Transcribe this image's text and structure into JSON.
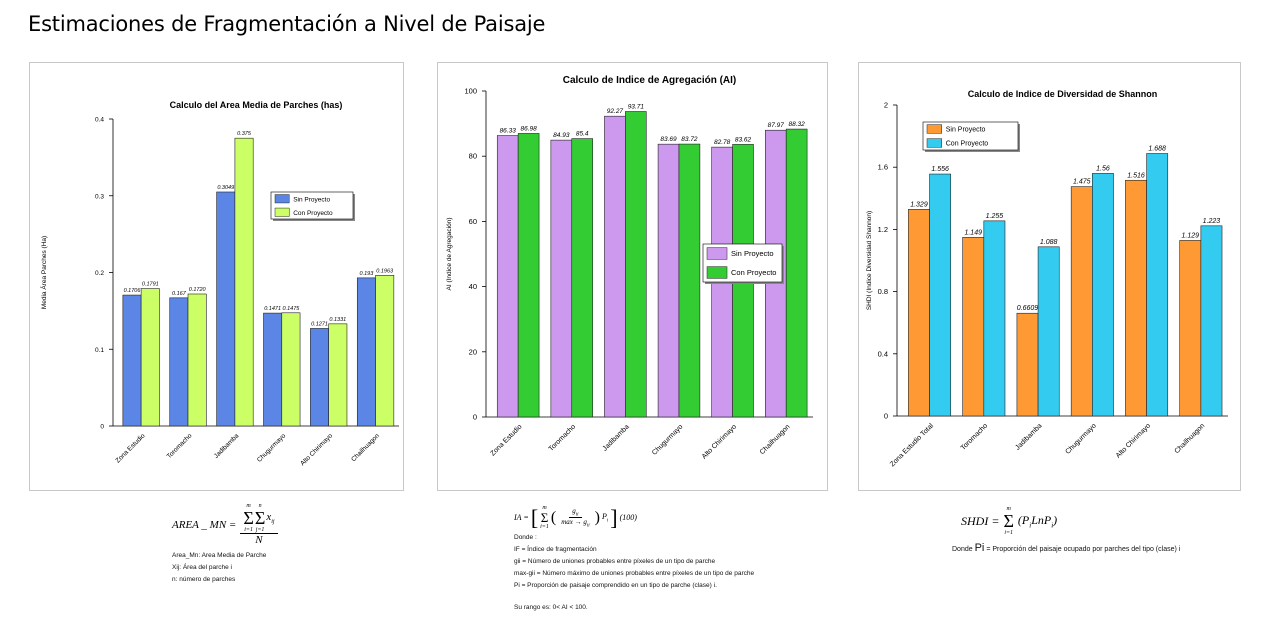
{
  "page": {
    "title": "Estimaciones de Fragmentación a Nivel de Paisaje"
  },
  "chart_data": [
    {
      "type": "bar",
      "title": "Calculo del Area Media de Parches (has)",
      "xlabel": "",
      "ylabel": "Media Área Parches (Ha)",
      "ylim": [
        0,
        0.4
      ],
      "yticks": [
        0,
        0.1,
        0.2,
        0.3,
        0.4
      ],
      "ytick_labels": [
        "0",
        "0.1",
        "0.2",
        "0.3",
        "0.4"
      ],
      "categories": [
        "Zona Estudio",
        "Toromacho",
        "Jadibamba",
        "Chugurmayo",
        "Alto Chirimayo",
        "Chailhuagon"
      ],
      "legend_position": "center-right",
      "series": [
        {
          "name": "Sin Proyecto",
          "color": "#5b86e5",
          "values": [
            0.1706,
            0.167,
            0.3049,
            0.1471,
            0.1271,
            0.193
          ],
          "labels": [
            "0.1706",
            "0.167",
            "0.3049",
            "0.1471",
            "0.1271",
            "0.193"
          ]
        },
        {
          "name": "Con Proyecto",
          "color": "#ccff66",
          "values": [
            0.1791,
            0.172,
            0.375,
            0.1475,
            0.1331,
            0.1963
          ],
          "labels": [
            "0.1791",
            "0.1720",
            "0.375",
            "0.1475",
            "0.1331",
            "0.1963"
          ]
        }
      ]
    },
    {
      "type": "bar",
      "title": "Calculo de Indice de Agregación (AI)",
      "xlabel": "",
      "ylabel": "AI (Indice de Agregación)",
      "ylim": [
        0,
        100
      ],
      "yticks": [
        0,
        20,
        40,
        60,
        80,
        100
      ],
      "ytick_labels": [
        "0",
        "20",
        "40",
        "60",
        "80",
        "100"
      ],
      "categories": [
        "Zona Estudio",
        "Toromacho",
        "Jadibamba",
        "Chugurmayo",
        "Alto Chirimayo",
        "Chailhuagon"
      ],
      "legend_position": "center-right",
      "series": [
        {
          "name": "Sin Proyecto",
          "color": "#cc99ee",
          "values": [
            86.33,
            84.93,
            92.27,
            83.69,
            82.78,
            87.97
          ],
          "labels": [
            "86.33",
            "84.93",
            "92.27",
            "83.69",
            "82.78",
            "87.97"
          ]
        },
        {
          "name": "Con Proyecto",
          "color": "#33cc33",
          "values": [
            86.98,
            85.4,
            93.71,
            83.72,
            83.62,
            88.32
          ],
          "labels": [
            "86.98",
            "85.4",
            "93.71",
            "83.72",
            "83.62",
            "88.32"
          ]
        }
      ]
    },
    {
      "type": "bar",
      "title": "Calculo de Indice de Diversidad de Shannon",
      "xlabel": "",
      "ylabel": "SHDI (Indice Diversidad Shannon)",
      "ylim": [
        0,
        2
      ],
      "yticks": [
        0,
        0.4,
        0.8,
        1.2,
        1.6,
        2
      ],
      "ytick_labels": [
        "0",
        "0.4",
        "0.8",
        "1.2",
        "1.6",
        "2"
      ],
      "categories": [
        "Zona Estudio Total",
        "Toromacho",
        "Jadibamba",
        "Chugurmayo",
        "Alto Chirimayo",
        "Chailhuagon"
      ],
      "legend_position": "top-left",
      "series": [
        {
          "name": "Sin Proyecto",
          "color": "#ff9933",
          "values": [
            1.329,
            1.149,
            0.6609,
            1.475,
            1.516,
            1.129
          ],
          "labels": [
            "1.329",
            "1.149",
            "0.6609",
            "1.475",
            "1.516",
            "1.129"
          ]
        },
        {
          "name": "Con Proyecto",
          "color": "#33ccf0",
          "values": [
            1.556,
            1.255,
            1.088,
            1.56,
            1.688,
            1.223
          ],
          "labels": [
            "1.556",
            "1.255",
            "1.088",
            "1.56",
            "1.688",
            "1.223"
          ]
        }
      ]
    }
  ],
  "formulas": {
    "area": {
      "lhs": "AREA _ MN =",
      "sum_outer_top": "m",
      "sum_outer_bottom": "i=1",
      "sum_inner_top": "n",
      "sum_inner_bottom": "j=1",
      "numerator_term": "x",
      "numerator_sub": "ij",
      "denominator": "N",
      "notes": [
        "Area_Mn: Area Media de Parche",
        "Xij: Área del parche i",
        "n: número de parches"
      ]
    },
    "ai": {
      "lhs": "IA =",
      "sum_top": "m",
      "sum_bottom": "i=1",
      "numerator": "g",
      "numerator_sub": "ii",
      "denominator": "max → g",
      "denominator_sub": "ii",
      "term": "P",
      "term_sub": "i",
      "tail": "(100)",
      "notes": [
        "Donde :",
        "IF = Índice de fragmentación",
        "gii = Número de uniones probables entre píxeles de un tipo de parche",
        "max-gii = Número máximo de uniones probables entre píxeles de un tipo de parche",
        "Pi = Proporción de paisaje comprendido en un tipo de parche (clase) i.",
        "Su rango es: 0< AI < 100."
      ]
    },
    "shdi": {
      "lhs": "SHDI =",
      "sum_top": "m",
      "sum_bottom": "i=1",
      "body": "(P",
      "body_sub": "i",
      "body_mid": "LnP",
      "body_sub2": "i",
      "body_end": ")",
      "note_prefix": "Donde",
      "note_symbol": "Pi",
      "note_rest": "= Proporción del paisaje ocupado por parches del tipo (clase) i"
    }
  }
}
